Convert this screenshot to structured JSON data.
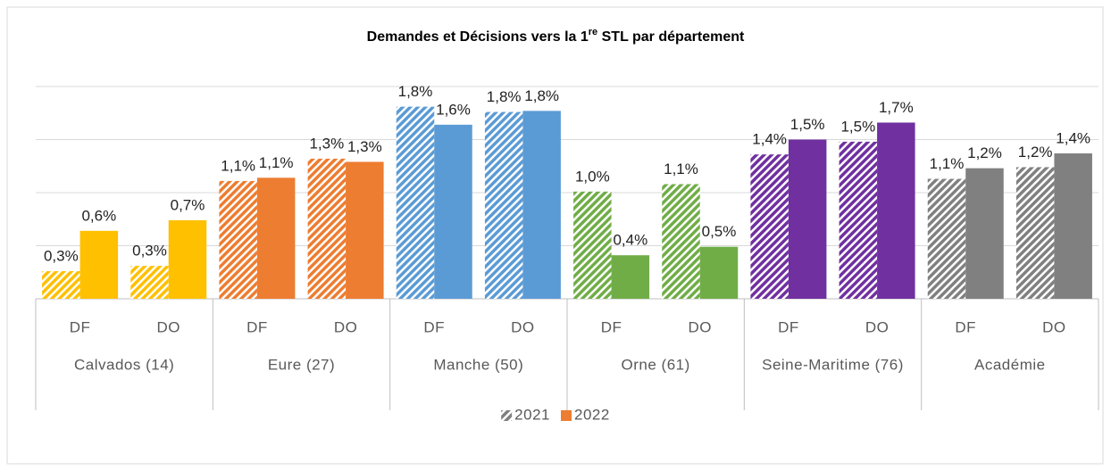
{
  "chart_data": {
    "type": "bar",
    "title": [
      "Demandes et Décisions vers la 1",
      "re",
      " STL par département"
    ],
    "categories": [
      "DF",
      "DO",
      "DF",
      "DO",
      "DF",
      "DO",
      "DF",
      "DO",
      "DF",
      "DO",
      "DF",
      "DO"
    ],
    "groups": [
      {
        "label": "Calvados (14)",
        "color": "#ffc000"
      },
      {
        "label": "Eure (27)",
        "color": "#ed7d31"
      },
      {
        "label": "Manche (50)",
        "color": "#5b9bd5"
      },
      {
        "label": "Orne (61)",
        "color": "#70ad47"
      },
      {
        "label": "Seine-Maritime (76)",
        "color": "#7030a0"
      },
      {
        "label": "Académie",
        "color": "#808080"
      }
    ],
    "series": [
      {
        "name": "2021",
        "style": "hatched",
        "color": "#808080",
        "values": [
          0.26,
          0.31,
          1.11,
          1.32,
          1.81,
          1.76,
          1.01,
          1.08,
          1.36,
          1.48,
          1.13,
          1.24
        ],
        "value_labels": [
          "0,3%",
          "0,3%",
          "1,1%",
          "1,3%",
          "1,8%",
          "1,8%",
          "1,0%",
          "1,1%",
          "1,4%",
          "1,5%",
          "1,1%",
          "1,2%"
        ]
      },
      {
        "name": "2022",
        "style": "solid",
        "color": "#ed7d31",
        "values": [
          0.64,
          0.74,
          1.14,
          1.29,
          1.64,
          1.77,
          0.41,
          0.49,
          1.5,
          1.66,
          1.23,
          1.37
        ],
        "value_labels": [
          "0,6%",
          "0,7%",
          "1,1%",
          "1,3%",
          "1,6%",
          "1,8%",
          "0,4%",
          "0,5%",
          "1,5%",
          "1,7%",
          "1,2%",
          "1,4%"
        ]
      }
    ],
    "ylim": [
      0,
      2
    ],
    "yticks": [
      0,
      0.5,
      1,
      1.5,
      2
    ],
    "grid": true,
    "legend": "bottom"
  }
}
